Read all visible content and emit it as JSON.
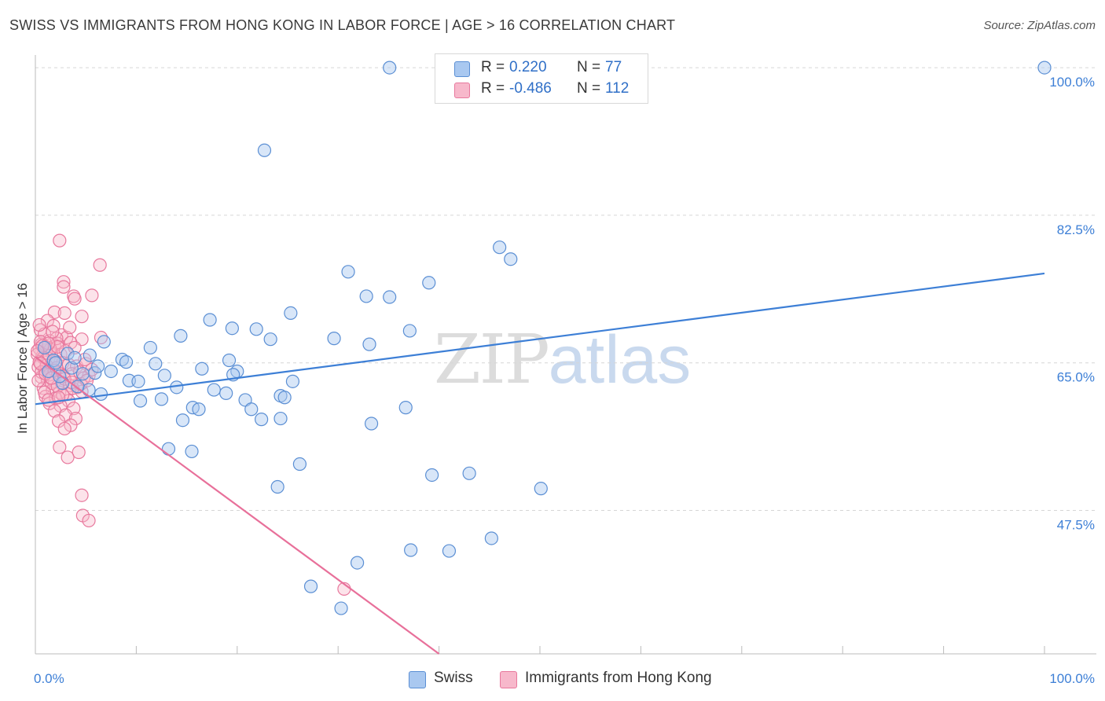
{
  "title": "SWISS VS IMMIGRANTS FROM HONG KONG IN LABOR FORCE | AGE > 16 CORRELATION CHART",
  "source": "Source: ZipAtlas.com",
  "watermark": {
    "zip": "ZIP",
    "atlas": "atlas"
  },
  "legend": {
    "r_label": "R =",
    "n_label": "N =",
    "series": [
      {
        "name": "Swiss",
        "r": "0.220",
        "n": "77",
        "color": "#a9c8f0",
        "stroke": "#5b8fd4"
      },
      {
        "name": "Immigrants from Hong Kong",
        "r": "-0.486",
        "n": "112",
        "color": "#f7b8cb",
        "stroke": "#e8789d"
      }
    ]
  },
  "colors": {
    "blue": "#3d7fd6",
    "pink": "#e8709a",
    "axis_label": "#3d7fd6",
    "grid": "#d6d6d6"
  },
  "chart_data": {
    "type": "scatter",
    "title": "SWISS VS IMMIGRANTS FROM HONG KONG IN LABOR FORCE | AGE > 16 CORRELATION CHART",
    "xlabel": "",
    "ylabel": "In Labor Force | Age > 16",
    "xlim": [
      0,
      100
    ],
    "ylim": [
      30.5,
      101.5
    ],
    "x_tick_labels": [
      "0.0%",
      "100.0%"
    ],
    "y_ticks": [
      47.5,
      65.0,
      82.5,
      100.0
    ],
    "y_tick_labels": [
      "47.5%",
      "65.0%",
      "82.5%",
      "100.0%"
    ],
    "series": [
      {
        "name": "Swiss",
        "trendline": {
          "x": [
            0,
            100
          ],
          "y": [
            60.1,
            75.6
          ]
        },
        "points": [
          [
            35.1,
            100.0
          ],
          [
            100.0,
            100.0
          ],
          [
            22.7,
            90.2
          ],
          [
            46.0,
            78.7
          ],
          [
            47.1,
            77.3
          ],
          [
            31.0,
            75.8
          ],
          [
            39.0,
            74.5
          ],
          [
            32.8,
            72.9
          ],
          [
            35.1,
            72.8
          ],
          [
            25.3,
            70.9
          ],
          [
            17.3,
            70.1
          ],
          [
            19.5,
            69.1
          ],
          [
            21.9,
            69.0
          ],
          [
            37.1,
            68.8
          ],
          [
            14.4,
            68.2
          ],
          [
            29.6,
            67.9
          ],
          [
            23.3,
            67.8
          ],
          [
            6.8,
            67.5
          ],
          [
            33.1,
            67.2
          ],
          [
            11.4,
            66.8
          ],
          [
            5.4,
            65.9
          ],
          [
            8.6,
            65.4
          ],
          [
            11.9,
            64.9
          ],
          [
            9.0,
            65.1
          ],
          [
            19.2,
            65.3
          ],
          [
            16.5,
            64.3
          ],
          [
            20.0,
            64.0
          ],
          [
            4.7,
            63.7
          ],
          [
            7.5,
            64.0
          ],
          [
            12.8,
            63.5
          ],
          [
            19.6,
            63.6
          ],
          [
            9.3,
            62.9
          ],
          [
            10.2,
            62.8
          ],
          [
            25.5,
            62.8
          ],
          [
            2.7,
            62.6
          ],
          [
            5.3,
            61.8
          ],
          [
            14.0,
            62.1
          ],
          [
            17.7,
            61.8
          ],
          [
            18.9,
            61.4
          ],
          [
            6.5,
            61.3
          ],
          [
            24.3,
            61.1
          ],
          [
            10.4,
            60.5
          ],
          [
            12.5,
            60.7
          ],
          [
            20.8,
            60.6
          ],
          [
            24.7,
            60.9
          ],
          [
            15.6,
            59.7
          ],
          [
            16.2,
            59.5
          ],
          [
            21.4,
            59.5
          ],
          [
            36.7,
            59.7
          ],
          [
            14.6,
            58.2
          ],
          [
            22.4,
            58.3
          ],
          [
            24.3,
            58.4
          ],
          [
            33.3,
            57.8
          ],
          [
            13.2,
            54.8
          ],
          [
            15.5,
            54.5
          ],
          [
            26.2,
            53.0
          ],
          [
            39.3,
            51.7
          ],
          [
            43.0,
            51.9
          ],
          [
            24.0,
            50.3
          ],
          [
            50.1,
            50.1
          ],
          [
            45.2,
            44.2
          ],
          [
            37.2,
            42.8
          ],
          [
            41.0,
            42.7
          ],
          [
            31.9,
            41.3
          ],
          [
            27.3,
            38.5
          ],
          [
            30.3,
            35.9
          ],
          [
            1.8,
            65.3
          ],
          [
            3.2,
            66.1
          ],
          [
            2.4,
            63.4
          ],
          [
            5.9,
            63.8
          ],
          [
            0.9,
            66.8
          ],
          [
            3.6,
            64.4
          ],
          [
            1.3,
            64.0
          ],
          [
            4.2,
            62.2
          ],
          [
            2.0,
            65.0
          ],
          [
            6.2,
            64.6
          ],
          [
            3.9,
            65.6
          ]
        ]
      },
      {
        "name": "Immigrants from Hong Kong",
        "trendline": {
          "x": [
            0,
            40.0
          ],
          "y": [
            65.7,
            30.5
          ]
        },
        "points": [
          [
            2.4,
            79.5
          ],
          [
            6.4,
            76.6
          ],
          [
            2.8,
            74.6
          ],
          [
            2.8,
            74.0
          ],
          [
            5.6,
            73.0
          ],
          [
            3.8,
            72.9
          ],
          [
            3.9,
            72.6
          ],
          [
            1.9,
            71.0
          ],
          [
            2.9,
            70.9
          ],
          [
            4.6,
            70.5
          ],
          [
            1.2,
            70.0
          ],
          [
            1.8,
            69.4
          ],
          [
            0.5,
            68.9
          ],
          [
            0.9,
            68.4
          ],
          [
            2.6,
            68.3
          ],
          [
            3.1,
            68.0
          ],
          [
            4.6,
            67.8
          ],
          [
            6.5,
            68.0
          ],
          [
            1.4,
            67.6
          ],
          [
            3.5,
            67.4
          ],
          [
            0.6,
            67.2
          ],
          [
            1.9,
            67.0
          ],
          [
            2.2,
            67.3
          ],
          [
            0.4,
            66.7
          ],
          [
            1.1,
            66.5
          ],
          [
            1.6,
            66.2
          ],
          [
            2.5,
            66.0
          ],
          [
            3.0,
            66.4
          ],
          [
            0.7,
            65.8
          ],
          [
            1.3,
            65.5
          ],
          [
            2.0,
            65.2
          ],
          [
            2.7,
            65.0
          ],
          [
            3.3,
            64.8
          ],
          [
            4.1,
            64.6
          ],
          [
            5.0,
            64.9
          ],
          [
            0.3,
            64.5
          ],
          [
            0.9,
            64.2
          ],
          [
            1.5,
            64.0
          ],
          [
            2.3,
            63.8
          ],
          [
            3.6,
            63.7
          ],
          [
            4.4,
            63.9
          ],
          [
            5.3,
            63.5
          ],
          [
            0.6,
            63.3
          ],
          [
            1.2,
            63.0
          ],
          [
            1.9,
            62.8
          ],
          [
            2.6,
            62.5
          ],
          [
            3.4,
            62.3
          ],
          [
            4.2,
            62.1
          ],
          [
            0.8,
            62.0
          ],
          [
            1.7,
            61.8
          ],
          [
            2.4,
            61.5
          ],
          [
            3.1,
            61.3
          ],
          [
            4.6,
            61.6
          ],
          [
            1.0,
            61.0
          ],
          [
            2.0,
            60.8
          ],
          [
            3.3,
            60.5
          ],
          [
            1.4,
            60.2
          ],
          [
            2.5,
            59.9
          ],
          [
            3.8,
            59.6
          ],
          [
            1.9,
            59.3
          ],
          [
            3.0,
            58.8
          ],
          [
            4.0,
            58.4
          ],
          [
            2.3,
            58.1
          ],
          [
            3.5,
            57.6
          ],
          [
            2.9,
            57.2
          ],
          [
            2.4,
            55.0
          ],
          [
            4.3,
            54.4
          ],
          [
            3.2,
            53.8
          ],
          [
            4.6,
            49.3
          ],
          [
            4.7,
            46.9
          ],
          [
            5.3,
            46.3
          ],
          [
            30.6,
            38.2
          ],
          [
            0.5,
            67.5
          ],
          [
            1.0,
            66.9
          ],
          [
            1.5,
            66.6
          ],
          [
            0.2,
            66.0
          ],
          [
            0.8,
            65.6
          ],
          [
            1.8,
            65.3
          ],
          [
            0.4,
            65.1
          ],
          [
            1.1,
            64.7
          ],
          [
            2.1,
            64.4
          ],
          [
            0.6,
            63.9
          ],
          [
            1.4,
            63.6
          ],
          [
            2.8,
            63.4
          ],
          [
            0.3,
            62.9
          ],
          [
            1.6,
            62.6
          ],
          [
            2.2,
            62.2
          ],
          [
            3.7,
            62.0
          ],
          [
            0.9,
            61.5
          ],
          [
            2.7,
            61.2
          ],
          [
            1.3,
            60.6
          ],
          [
            4.9,
            65.4
          ],
          [
            5.6,
            64.2
          ],
          [
            4.8,
            63.2
          ],
          [
            3.9,
            66.8
          ],
          [
            2.1,
            67.9
          ],
          [
            1.7,
            68.7
          ],
          [
            0.4,
            69.5
          ],
          [
            3.4,
            69.2
          ],
          [
            2.2,
            66.9
          ],
          [
            1.3,
            67.3
          ],
          [
            0.7,
            67.0
          ],
          [
            0.2,
            66.4
          ],
          [
            1.9,
            64.1
          ],
          [
            2.9,
            63.1
          ],
          [
            3.6,
            62.7
          ],
          [
            4.5,
            62.5
          ],
          [
            5.1,
            62.9
          ],
          [
            0.5,
            64.9
          ],
          [
            1.0,
            63.7
          ],
          [
            1.6,
            63.2
          ],
          [
            2.3,
            60.9
          ]
        ]
      }
    ]
  }
}
